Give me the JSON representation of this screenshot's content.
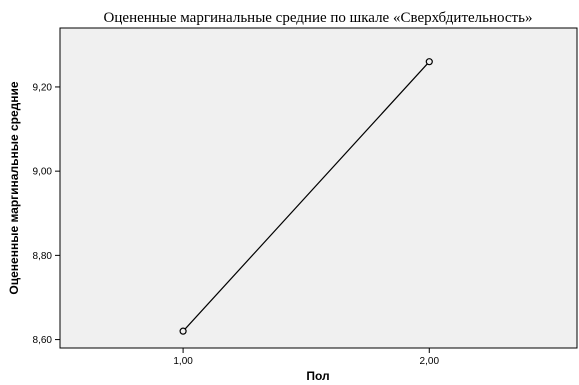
{
  "chart_data": {
    "type": "line",
    "title": "Оцененные маргинальные средние по шкале «Сверхбдительность»",
    "xlabel": "Пол",
    "ylabel": "Оцененные маргинальные средние",
    "x_ticks": [
      "1,00",
      "2,00"
    ],
    "x_range": [
      0.5,
      2.6
    ],
    "y_ticks": [
      "8,60",
      "8,80",
      "9,00",
      "9,20"
    ],
    "y_tick_values": [
      8.6,
      8.8,
      9.0,
      9.2
    ],
    "ylim": [
      8.58,
      9.34
    ],
    "grid": false,
    "series": [
      {
        "x": [
          1.0,
          2.0
        ],
        "values": [
          8.62,
          9.26
        ]
      }
    ],
    "colors": {
      "plot_background": "#f0f0f0",
      "line": "#000000",
      "frame": "#000000"
    }
  }
}
